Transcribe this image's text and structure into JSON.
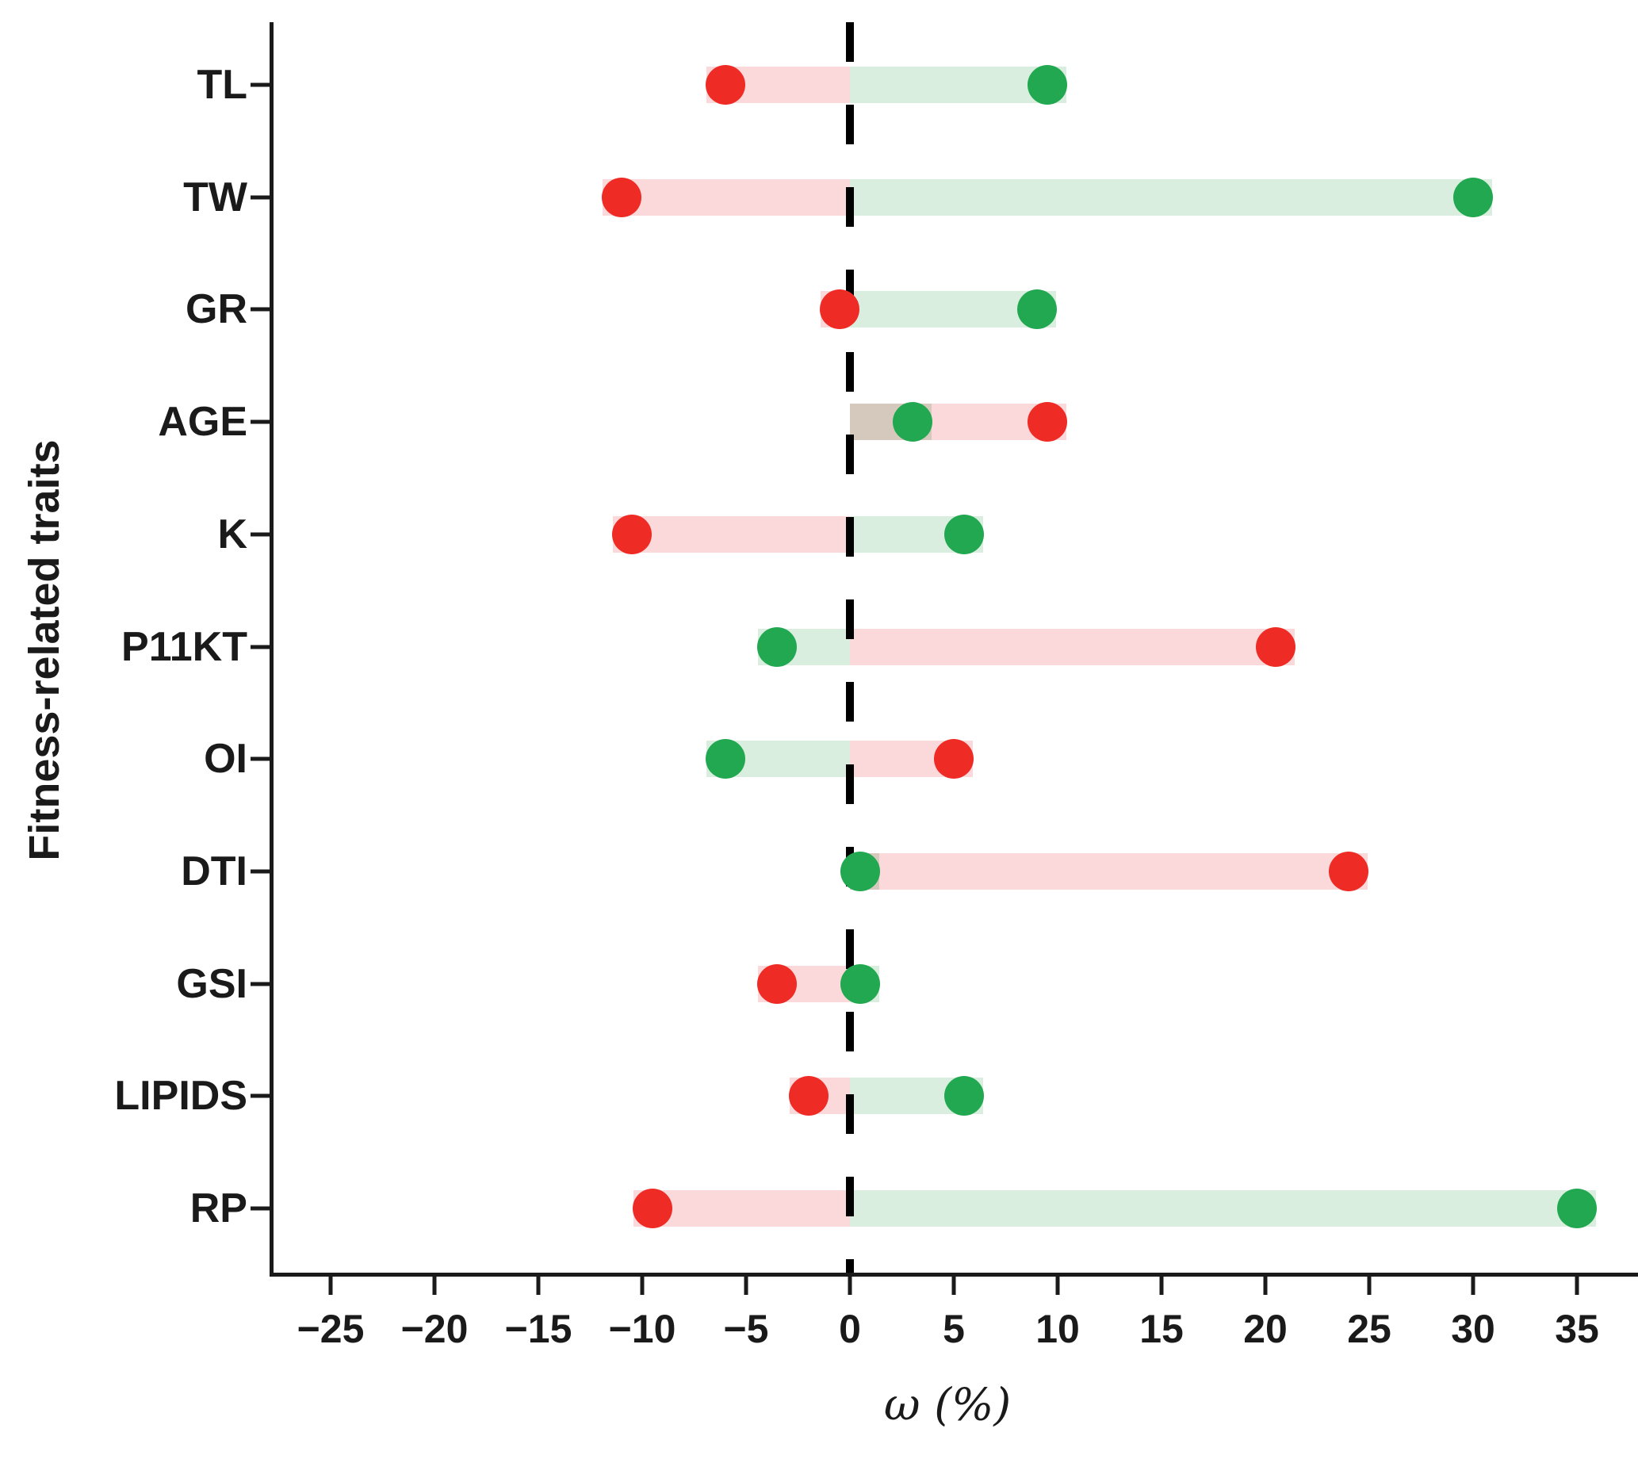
{
  "axes": {
    "y_title": "Fitness-related traits",
    "x_title": "ω (%)",
    "x_ticks": [
      -25,
      -20,
      -15,
      -10,
      -5,
      0,
      5,
      10,
      15,
      20,
      25,
      30,
      35
    ]
  },
  "chart_data": {
    "type": "dumbbell",
    "title": "",
    "xlabel": "ω (%)",
    "ylabel": "Fitness-related traits",
    "xlim": [
      -28,
      38
    ],
    "zero_reference_line": 0,
    "categories": [
      "TL",
      "TW",
      "GR",
      "AGE",
      "K",
      "P11KT",
      "OI",
      "DTI",
      "GSI",
      "LIPIDS",
      "RP"
    ],
    "series": [
      {
        "name": "red",
        "dot_color": "#ee2b25",
        "bar_color": "#fbd8d9",
        "values": [
          -6,
          -11,
          -0.5,
          9.5,
          -10.5,
          20.5,
          5,
          24,
          -3.5,
          -2,
          -9.5
        ]
      },
      {
        "name": "green",
        "dot_color": "#21a850",
        "bar_color": "#d9eedf",
        "values": [
          9.5,
          30,
          9,
          3,
          5.5,
          -3.5,
          -6,
          0.5,
          0.5,
          5.5,
          35
        ]
      }
    ],
    "legend": "none",
    "grid": false
  },
  "colors": {
    "axis": "#1a1a1a",
    "background": "#ffffff",
    "red_dot": "#ee2b25",
    "green_dot": "#21a850",
    "red_bar": "#fbd8d9",
    "green_bar": "#d9eedf"
  }
}
